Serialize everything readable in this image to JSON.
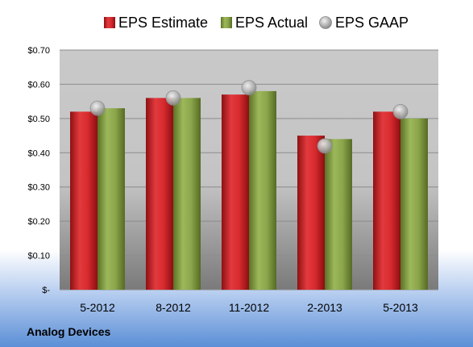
{
  "chart_data": {
    "type": "bar",
    "categories": [
      "5-2012",
      "8-2012",
      "11-2012",
      "2-2013",
      "5-2013"
    ],
    "series": [
      {
        "name": "EPS Estimate",
        "type": "bar",
        "values": [
          0.52,
          0.56,
          0.57,
          0.45,
          0.52
        ],
        "color": "#cc1f24"
      },
      {
        "name": "EPS Actual",
        "type": "bar",
        "values": [
          0.53,
          0.56,
          0.58,
          0.44,
          0.5
        ],
        "color": "#7f9a3f"
      },
      {
        "name": "EPS GAAP",
        "type": "marker",
        "values": [
          0.53,
          0.56,
          0.59,
          0.42,
          0.52
        ],
        "color": "#a6a6a6"
      }
    ],
    "ylim": [
      0,
      0.7
    ],
    "yticks": [
      0,
      0.1,
      0.2,
      0.3,
      0.4,
      0.5,
      0.6,
      0.7
    ],
    "ytick_labels": [
      "$-",
      "$0.10",
      "$0.20",
      "$0.30",
      "$0.40",
      "$0.50",
      "$0.60",
      "$0.70"
    ],
    "grid": true,
    "legend_position": "top"
  },
  "footer": {
    "company": "Analog Devices"
  },
  "colors": {
    "background_top": "#ffffff",
    "background_bottom": "#5b8fd6",
    "plot_top": "#c9c9c9",
    "plot_bottom": "#7a7a7a",
    "gridline": "#8c8c8c"
  }
}
